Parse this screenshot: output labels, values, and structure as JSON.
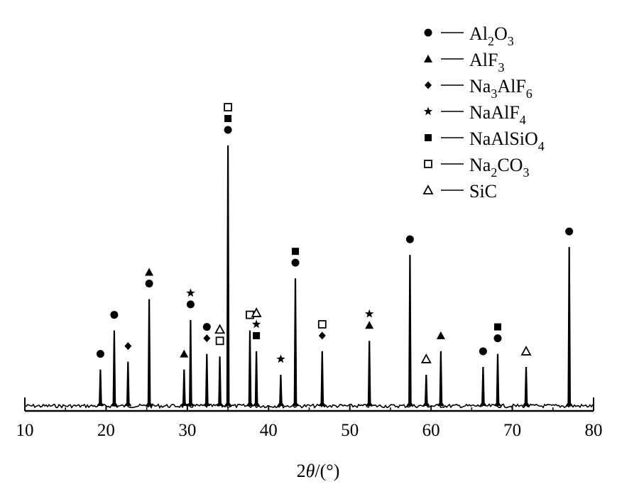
{
  "chart_data": {
    "type": "line",
    "title": "",
    "xlabel_parts": [
      {
        "text": "2",
        "style": "normal"
      },
      {
        "text": "θ",
        "style": "italic"
      },
      {
        "text": "/(°)",
        "style": "normal"
      }
    ],
    "ylabel": "",
    "xlim": [
      10,
      80
    ],
    "ylim": [
      0,
      100
    ],
    "xticks": [
      10,
      20,
      30,
      40,
      50,
      60,
      70,
      80
    ],
    "grid": false,
    "legend_placement": "top-right",
    "legend": [
      {
        "symbol": "filled-circle",
        "parts": [
          {
            "t": "Al",
            "s": false
          },
          {
            "t": "2",
            "s": true
          },
          {
            "t": "O",
            "s": false
          },
          {
            "t": "3",
            "s": true
          }
        ]
      },
      {
        "symbol": "filled-triangle",
        "parts": [
          {
            "t": "AlF",
            "s": false
          },
          {
            "t": "3",
            "s": true
          }
        ]
      },
      {
        "symbol": "filled-diamond",
        "parts": [
          {
            "t": "Na",
            "s": false
          },
          {
            "t": "3",
            "s": true
          },
          {
            "t": "AlF",
            "s": false
          },
          {
            "t": "6",
            "s": true
          }
        ]
      },
      {
        "symbol": "filled-star",
        "parts": [
          {
            "t": "NaAlF",
            "s": false
          },
          {
            "t": "4",
            "s": true
          }
        ]
      },
      {
        "symbol": "filled-square",
        "parts": [
          {
            "t": "NaAlSiO",
            "s": false
          },
          {
            "t": "4",
            "s": true
          }
        ]
      },
      {
        "symbol": "open-square",
        "parts": [
          {
            "t": "Na",
            "s": false
          },
          {
            "t": "2",
            "s": true
          },
          {
            "t": "CO",
            "s": false
          },
          {
            "t": "3",
            "s": true
          }
        ]
      },
      {
        "symbol": "open-triangle",
        "parts": [
          {
            "t": "SiC",
            "s": false
          }
        ]
      }
    ],
    "peaks": [
      {
        "x": 19.3,
        "y": 14,
        "markers": [
          "filled-circle"
        ]
      },
      {
        "x": 21.0,
        "y": 29,
        "markers": [
          "filled-circle"
        ]
      },
      {
        "x": 22.7,
        "y": 17,
        "markers": [
          "filled-diamond"
        ]
      },
      {
        "x": 25.3,
        "y": 41,
        "markers": [
          "filled-circle",
          "filled-triangle"
        ]
      },
      {
        "x": 29.6,
        "y": 14,
        "markers": [
          "filled-triangle"
        ]
      },
      {
        "x": 30.4,
        "y": 33,
        "markers": [
          "filled-circle",
          "filled-star"
        ]
      },
      {
        "x": 32.4,
        "y": 20,
        "markers": [
          "filled-diamond",
          "filled-circle"
        ]
      },
      {
        "x": 34.0,
        "y": 19,
        "markers": [
          "open-square",
          "open-triangle"
        ]
      },
      {
        "x": 35.0,
        "y": 100,
        "markers": [
          "filled-circle",
          "filled-square",
          "open-square"
        ]
      },
      {
        "x": 37.7,
        "y": 29,
        "markers": [
          "open-square"
        ]
      },
      {
        "x": 38.5,
        "y": 21,
        "markers": [
          "filled-square",
          "filled-star",
          "open-triangle"
        ]
      },
      {
        "x": 41.5,
        "y": 12,
        "markers": [
          "filled-star"
        ]
      },
      {
        "x": 43.3,
        "y": 49,
        "markers": [
          "filled-circle",
          "filled-square"
        ]
      },
      {
        "x": 46.6,
        "y": 21,
        "markers": [
          "filled-diamond",
          "open-square"
        ]
      },
      {
        "x": 52.4,
        "y": 25,
        "markers": [
          "filled-triangle",
          "filled-star"
        ]
      },
      {
        "x": 57.4,
        "y": 58,
        "markers": [
          "filled-circle"
        ]
      },
      {
        "x": 59.4,
        "y": 12,
        "markers": [
          "open-triangle"
        ]
      },
      {
        "x": 61.2,
        "y": 21,
        "markers": [
          "filled-triangle"
        ]
      },
      {
        "x": 66.4,
        "y": 15,
        "markers": [
          "filled-circle"
        ]
      },
      {
        "x": 68.2,
        "y": 20,
        "markers": [
          "filled-circle",
          "filled-square"
        ]
      },
      {
        "x": 71.7,
        "y": 15,
        "markers": [
          "open-triangle"
        ]
      },
      {
        "x": 77.0,
        "y": 61,
        "markers": [
          "filled-circle"
        ]
      }
    ]
  }
}
